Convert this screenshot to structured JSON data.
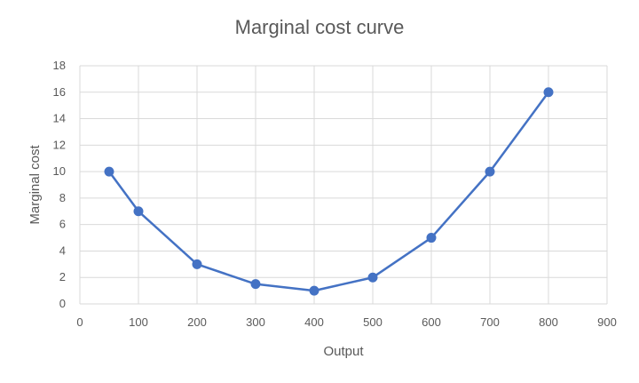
{
  "chart_data": {
    "type": "line",
    "title": "Marginal cost curve",
    "xlabel": "Output",
    "ylabel": "Marginal cost",
    "xlim": [
      0,
      900
    ],
    "ylim": [
      0,
      18
    ],
    "xticks": [
      0,
      100,
      200,
      300,
      400,
      500,
      600,
      700,
      800,
      900
    ],
    "yticks": [
      0,
      2,
      4,
      6,
      8,
      10,
      12,
      14,
      16,
      18
    ],
    "grid": true,
    "legend": "none",
    "series": [
      {
        "x": [
          50,
          100,
          200,
          300,
          400,
          500,
          600,
          700,
          800
        ],
        "y": [
          10,
          7,
          3,
          1.5,
          1,
          2,
          5,
          10,
          16
        ],
        "color": "#4472c4",
        "marker": "circle"
      }
    ],
    "colors": {
      "grid": "#d9d9d9",
      "axis_text": "#595959"
    }
  }
}
